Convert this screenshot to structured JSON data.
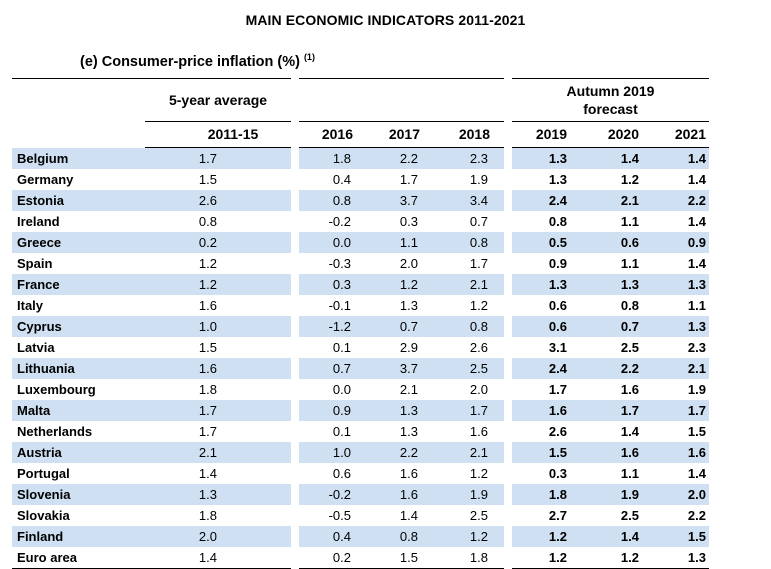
{
  "title": "MAIN ECONOMIC INDICATORS 2011-2021",
  "subtitle": "(e) Consumer-price inflation (%)",
  "footnote_marker": "(1)",
  "header": {
    "average_group": "5-year average",
    "forecast_group_line1": "Autumn 2019",
    "forecast_group_line2": "forecast",
    "columns": [
      "2011-15",
      "2016",
      "2017",
      "2018",
      "2019",
      "2020",
      "2021"
    ]
  },
  "rows": [
    {
      "name": "Belgium",
      "values": [
        "1.7",
        "1.8",
        "2.2",
        "2.3",
        "1.3",
        "1.4",
        "1.4"
      ],
      "shaded": true
    },
    {
      "name": "Germany",
      "values": [
        "1.5",
        "0.4",
        "1.7",
        "1.9",
        "1.3",
        "1.2",
        "1.4"
      ],
      "shaded": false
    },
    {
      "name": "Estonia",
      "values": [
        "2.6",
        "0.8",
        "3.7",
        "3.4",
        "2.4",
        "2.1",
        "2.2"
      ],
      "shaded": true
    },
    {
      "name": "Ireland",
      "values": [
        "0.8",
        "-0.2",
        "0.3",
        "0.7",
        "0.8",
        "1.1",
        "1.4"
      ],
      "shaded": false
    },
    {
      "name": "Greece",
      "values": [
        "0.2",
        "0.0",
        "1.1",
        "0.8",
        "0.5",
        "0.6",
        "0.9"
      ],
      "shaded": true
    },
    {
      "name": "Spain",
      "values": [
        "1.2",
        "-0.3",
        "2.0",
        "1.7",
        "0.9",
        "1.1",
        "1.4"
      ],
      "shaded": false
    },
    {
      "name": "France",
      "values": [
        "1.2",
        "0.3",
        "1.2",
        "2.1",
        "1.3",
        "1.3",
        "1.3"
      ],
      "shaded": true
    },
    {
      "name": "Italy",
      "values": [
        "1.6",
        "-0.1",
        "1.3",
        "1.2",
        "0.6",
        "0.8",
        "1.1"
      ],
      "shaded": false
    },
    {
      "name": "Cyprus",
      "values": [
        "1.0",
        "-1.2",
        "0.7",
        "0.8",
        "0.6",
        "0.7",
        "1.3"
      ],
      "shaded": true
    },
    {
      "name": "Latvia",
      "values": [
        "1.5",
        "0.1",
        "2.9",
        "2.6",
        "3.1",
        "2.5",
        "2.3"
      ],
      "shaded": false
    },
    {
      "name": "Lithuania",
      "values": [
        "1.6",
        "0.7",
        "3.7",
        "2.5",
        "2.4",
        "2.2",
        "2.1"
      ],
      "shaded": true
    },
    {
      "name": "Luxembourg",
      "values": [
        "1.8",
        "0.0",
        "2.1",
        "2.0",
        "1.7",
        "1.6",
        "1.9"
      ],
      "shaded": false
    },
    {
      "name": "Malta",
      "values": [
        "1.7",
        "0.9",
        "1.3",
        "1.7",
        "1.6",
        "1.7",
        "1.7"
      ],
      "shaded": true
    },
    {
      "name": "Netherlands",
      "values": [
        "1.7",
        "0.1",
        "1.3",
        "1.6",
        "2.6",
        "1.4",
        "1.5"
      ],
      "shaded": false
    },
    {
      "name": "Austria",
      "values": [
        "2.1",
        "1.0",
        "2.2",
        "2.1",
        "1.5",
        "1.6",
        "1.6"
      ],
      "shaded": true
    },
    {
      "name": "Portugal",
      "values": [
        "1.4",
        "0.6",
        "1.6",
        "1.2",
        "0.3",
        "1.1",
        "1.4"
      ],
      "shaded": false
    },
    {
      "name": "Slovenia",
      "values": [
        "1.3",
        "-0.2",
        "1.6",
        "1.9",
        "1.8",
        "1.9",
        "2.0"
      ],
      "shaded": true
    },
    {
      "name": "Slovakia",
      "values": [
        "1.8",
        "-0.5",
        "1.4",
        "2.5",
        "2.7",
        "2.5",
        "2.2"
      ],
      "shaded": false
    },
    {
      "name": "Finland",
      "values": [
        "2.0",
        "0.4",
        "0.8",
        "1.2",
        "1.2",
        "1.4",
        "1.5"
      ],
      "shaded": true
    },
    {
      "name": "Euro area",
      "values": [
        "1.4",
        "0.2",
        "1.5",
        "1.8",
        "1.2",
        "1.2",
        "1.3"
      ],
      "shaded": false
    }
  ],
  "colors": {
    "row_shade": "#cfe0f2",
    "rule": "#000000"
  }
}
